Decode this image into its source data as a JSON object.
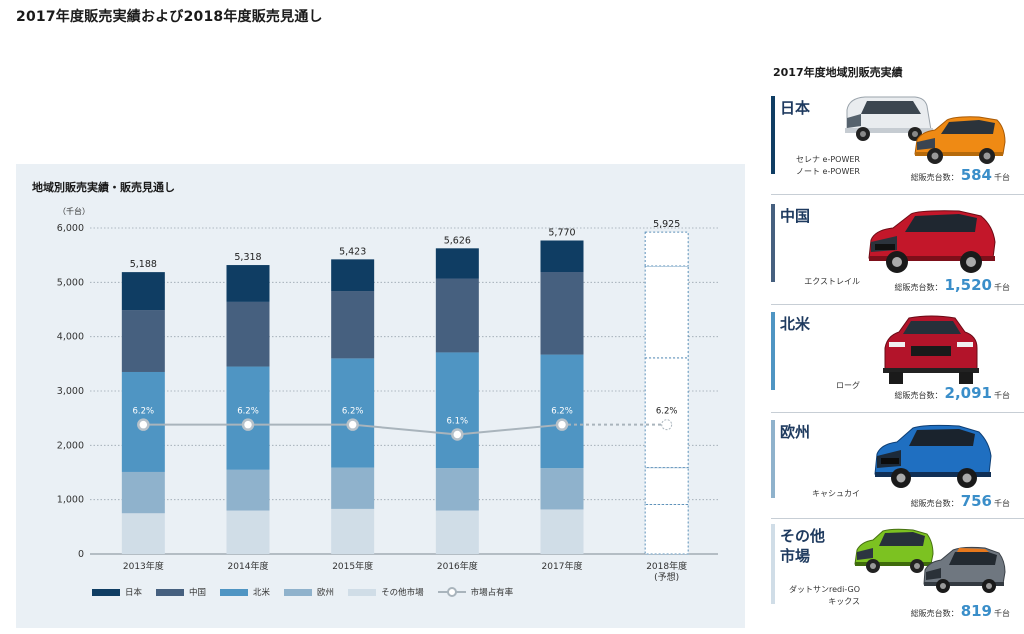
{
  "page_title": "2017年度販売実績および2018年度販売見通し",
  "chart_title": "地域別販売実績・販売見通し",
  "unit_label": "（千台）",
  "colors": {
    "japan": "#0f3d63",
    "china": "#46607f",
    "north_america": "#4f95c3",
    "europe": "#8fb2cc",
    "other": "#d0dde7",
    "share_line": "#a9b4bc",
    "panel": "#eaf0f5",
    "accent_number": "#3a8ec9"
  },
  "chart_data": {
    "type": "bar",
    "stacked": true,
    "title": "地域別販売実績・販売見通し",
    "ylabel": "（千台）",
    "ylim": [
      0,
      6000
    ],
    "yticks": [
      0,
      1000,
      2000,
      3000,
      4000,
      5000,
      6000
    ],
    "ytick_labels": [
      "0",
      "1,000",
      "2,000",
      "3,000",
      "4,000",
      "5,000",
      "6,000"
    ],
    "grid": true,
    "categories": [
      "2013年度",
      "2014年度",
      "2015年度",
      "2016年度",
      "2017年度",
      "2018年度"
    ],
    "category_notes": [
      "",
      "",
      "",
      "",
      "",
      "(予想)"
    ],
    "series": [
      {
        "name": "その他市場",
        "color": "#d0dde7",
        "values": [
          750,
          800,
          830,
          800,
          820,
          910
        ]
      },
      {
        "name": "欧州",
        "color": "#8fb2cc",
        "values": [
          760,
          750,
          760,
          780,
          760,
          680
        ]
      },
      {
        "name": "北米",
        "color": "#4f95c3",
        "values": [
          1840,
          1900,
          2010,
          2130,
          2090,
          2020
        ]
      },
      {
        "name": "中国",
        "color": "#46607f",
        "values": [
          1140,
          1190,
          1240,
          1360,
          1520,
          1690
        ]
      },
      {
        "name": "日本",
        "color": "#0f3d63",
        "values": [
          698,
          678,
          583,
          556,
          580,
          625
        ]
      }
    ],
    "totals": [
      5188,
      5318,
      5423,
      5626,
      5770,
      5925
    ],
    "total_labels": [
      "5,188",
      "5,318",
      "5,423",
      "5,626",
      "5,770",
      "5,925"
    ],
    "forecast_index": 5,
    "market_share": {
      "name": "市場占有率",
      "values": [
        6.2,
        6.2,
        6.2,
        6.1,
        6.2,
        6.2
      ],
      "labels": [
        "6.2%",
        "6.2%",
        "6.2%",
        "6.1%",
        "6.2%",
        "6.2%"
      ],
      "plotted_at": [
        2380,
        2380,
        2380,
        2200,
        2380,
        2380
      ]
    },
    "legend_position": "bottom",
    "legend": [
      "日本",
      "中国",
      "北米",
      "欧州",
      "その他市場",
      "市場占有率"
    ]
  },
  "side_panel": {
    "title": "2017年度地域別販売実績",
    "regions": [
      {
        "name": "日本",
        "name_lines": [
          "日本"
        ],
        "models": [
          "セレナ e-POWER",
          "ノート e-POWER"
        ],
        "total_label": "総販売台数：",
        "total": "584",
        "unit": "千台",
        "bar_color": "#0f3d63",
        "cars": [
          "white-minivan",
          "orange-hatchback"
        ]
      },
      {
        "name": "中国",
        "name_lines": [
          "中国"
        ],
        "models": [
          "エクストレイル"
        ],
        "total_label": "総販売台数：",
        "total": "1,520",
        "unit": "千台",
        "bar_color": "#46607f",
        "cars": [
          "red-suv"
        ]
      },
      {
        "name": "北米",
        "name_lines": [
          "北米"
        ],
        "models": [
          "ローグ"
        ],
        "total_label": "総販売台数：",
        "total": "2,091",
        "unit": "千台",
        "bar_color": "#4f95c3",
        "cars": [
          "red-suv"
        ]
      },
      {
        "name": "欧州",
        "name_lines": [
          "欧州"
        ],
        "models": [
          "キャシュカイ"
        ],
        "total_label": "総販売台数：",
        "total": "756",
        "unit": "千台",
        "bar_color": "#8fb2cc",
        "cars": [
          "blue-crossover"
        ]
      },
      {
        "name": "その他市場",
        "name_lines": [
          "その他",
          "市場"
        ],
        "models": [
          "ダットサンredi-GO",
          "キックス"
        ],
        "total_label": "総販売台数：",
        "total": "819",
        "unit": "千台",
        "bar_color": "#d0dde7",
        "cars": [
          "green-hatchback",
          "grey-crossover"
        ]
      }
    ]
  }
}
